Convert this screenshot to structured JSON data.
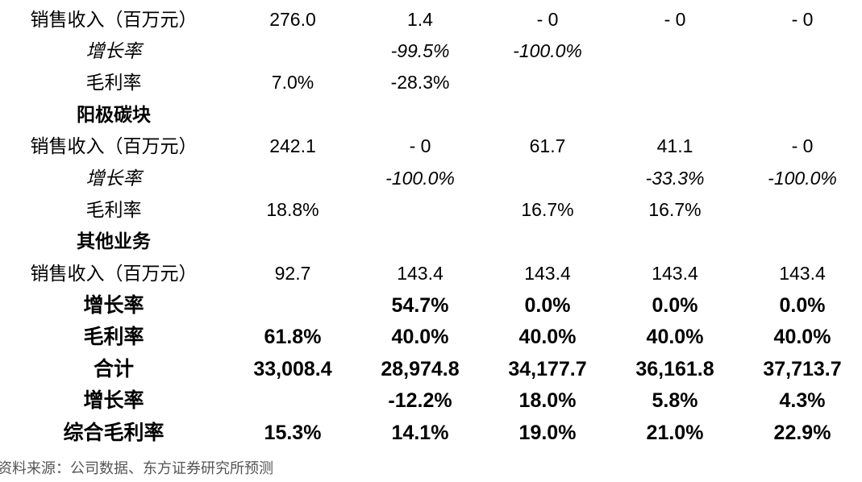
{
  "rows": [
    {
      "label": "销售收入（百万元）",
      "values": [
        "276.0",
        "1.4",
        "- 0",
        "- 0",
        "- 0"
      ]
    },
    {
      "label": "增长率",
      "values": [
        "",
        "-99.5%",
        "-100.0%",
        "",
        ""
      ]
    },
    {
      "label": "毛利率",
      "values": [
        "7.0%",
        "-28.3%",
        "",
        "",
        ""
      ]
    },
    {
      "label": "阳极碳块",
      "values": [
        "",
        "",
        "",
        "",
        ""
      ]
    },
    {
      "label": "销售收入（百万元）",
      "values": [
        "242.1",
        "- 0",
        "61.7",
        "41.1",
        "- 0"
      ]
    },
    {
      "label": "增长率",
      "values": [
        "",
        "-100.0%",
        "",
        "-33.3%",
        "-100.0%"
      ]
    },
    {
      "label": "毛利率",
      "values": [
        "18.8%",
        "",
        "16.7%",
        "16.7%",
        ""
      ]
    },
    {
      "label": "其他业务",
      "values": [
        "",
        "",
        "",
        "",
        ""
      ]
    },
    {
      "label": "销售收入（百万元）",
      "values": [
        "92.7",
        "143.4",
        "143.4",
        "143.4",
        "143.4"
      ]
    },
    {
      "label": "增长率",
      "values": [
        "",
        "54.7%",
        "0.0%",
        "0.0%",
        "0.0%"
      ]
    },
    {
      "label": "毛利率",
      "values": [
        "61.8%",
        "40.0%",
        "40.0%",
        "40.0%",
        "40.0%"
      ]
    },
    {
      "label": "合计",
      "values": [
        "33,008.4",
        "28,974.8",
        "34,177.7",
        "36,161.8",
        "37,713.7"
      ]
    },
    {
      "label": "增长率",
      "values": [
        "",
        "-12.2%",
        "18.0%",
        "5.8%",
        "4.3%"
      ]
    },
    {
      "label": "综合毛利率",
      "values": [
        "15.3%",
        "14.1%",
        "19.0%",
        "21.0%",
        "22.9%"
      ]
    }
  ],
  "footnote": "资料来源：公司数据、东方证券研究所预测"
}
